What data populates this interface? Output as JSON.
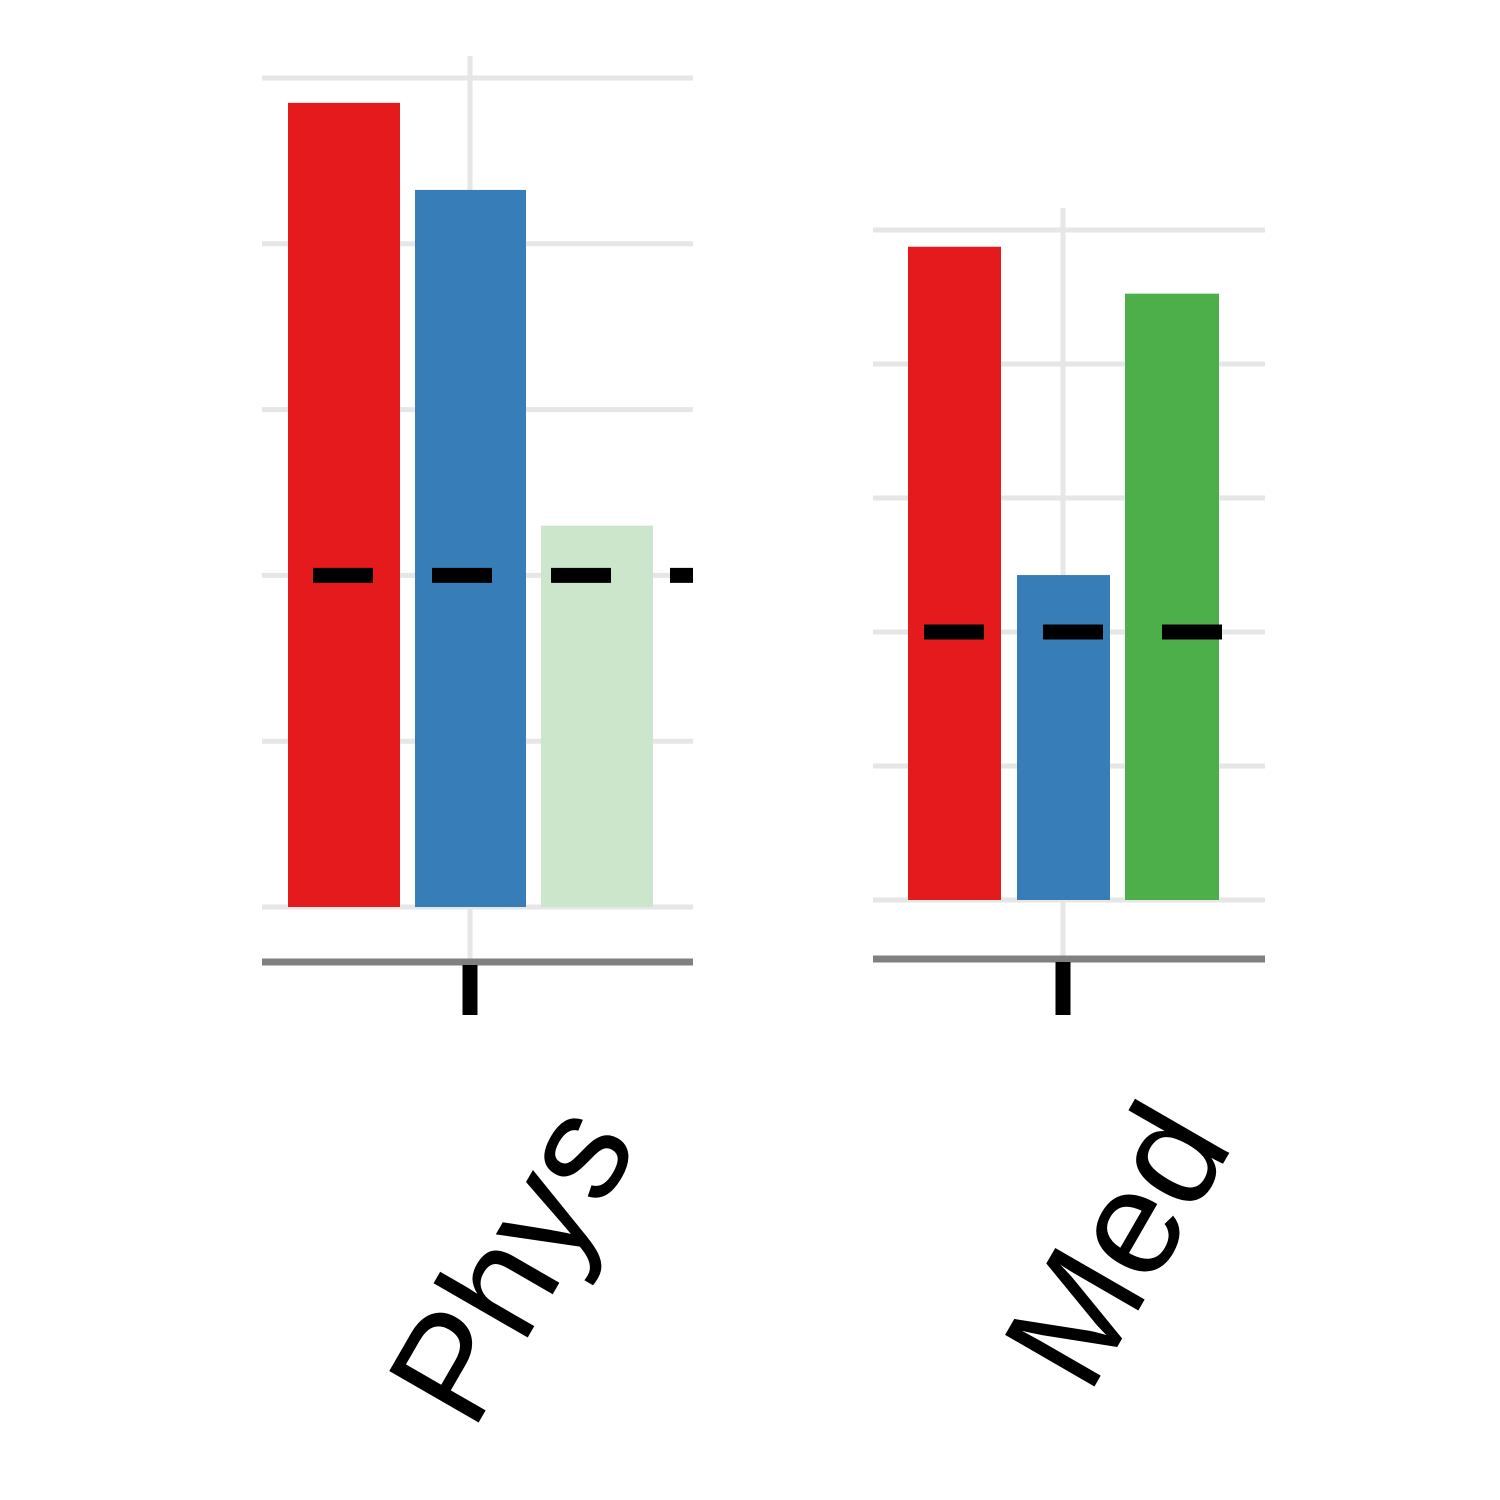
{
  "colors": {
    "series_1": "#e41a1c",
    "series_2": "#377eb8",
    "series_3": "#4daf4a",
    "series_3_faded": "#cce6cb",
    "reference_line": "#000000",
    "grid": "#e6e6e6",
    "axis": "#808080"
  },
  "chart_data": [
    {
      "type": "bar",
      "panel": "Phys",
      "ylim": [
        0,
        1
      ],
      "grid": true,
      "ticks": [
        0,
        0.2,
        0.4,
        0.6,
        0.8,
        1.0
      ],
      "reference_value": 0.4,
      "reference_style": "dashed",
      "series": [
        {
          "values": [
            0.97
          ],
          "color": "#e41a1c"
        },
        {
          "values": [
            0.865
          ],
          "color": "#377eb8"
        },
        {
          "values": [
            0.46
          ],
          "color": "#cce6cb"
        }
      ]
    },
    {
      "type": "bar",
      "panel": "Med",
      "ylim": [
        0,
        1
      ],
      "grid": true,
      "ticks": [
        0,
        0.2,
        0.4,
        0.6,
        0.8,
        1.0
      ],
      "reference_value": 0.4,
      "reference_style": "dashed",
      "series": [
        {
          "values": [
            0.975
          ],
          "color": "#e41a1c"
        },
        {
          "values": [
            0.485
          ],
          "color": "#377eb8"
        },
        {
          "values": [
            0.905
          ],
          "color": "#4daf4a"
        }
      ]
    }
  ]
}
